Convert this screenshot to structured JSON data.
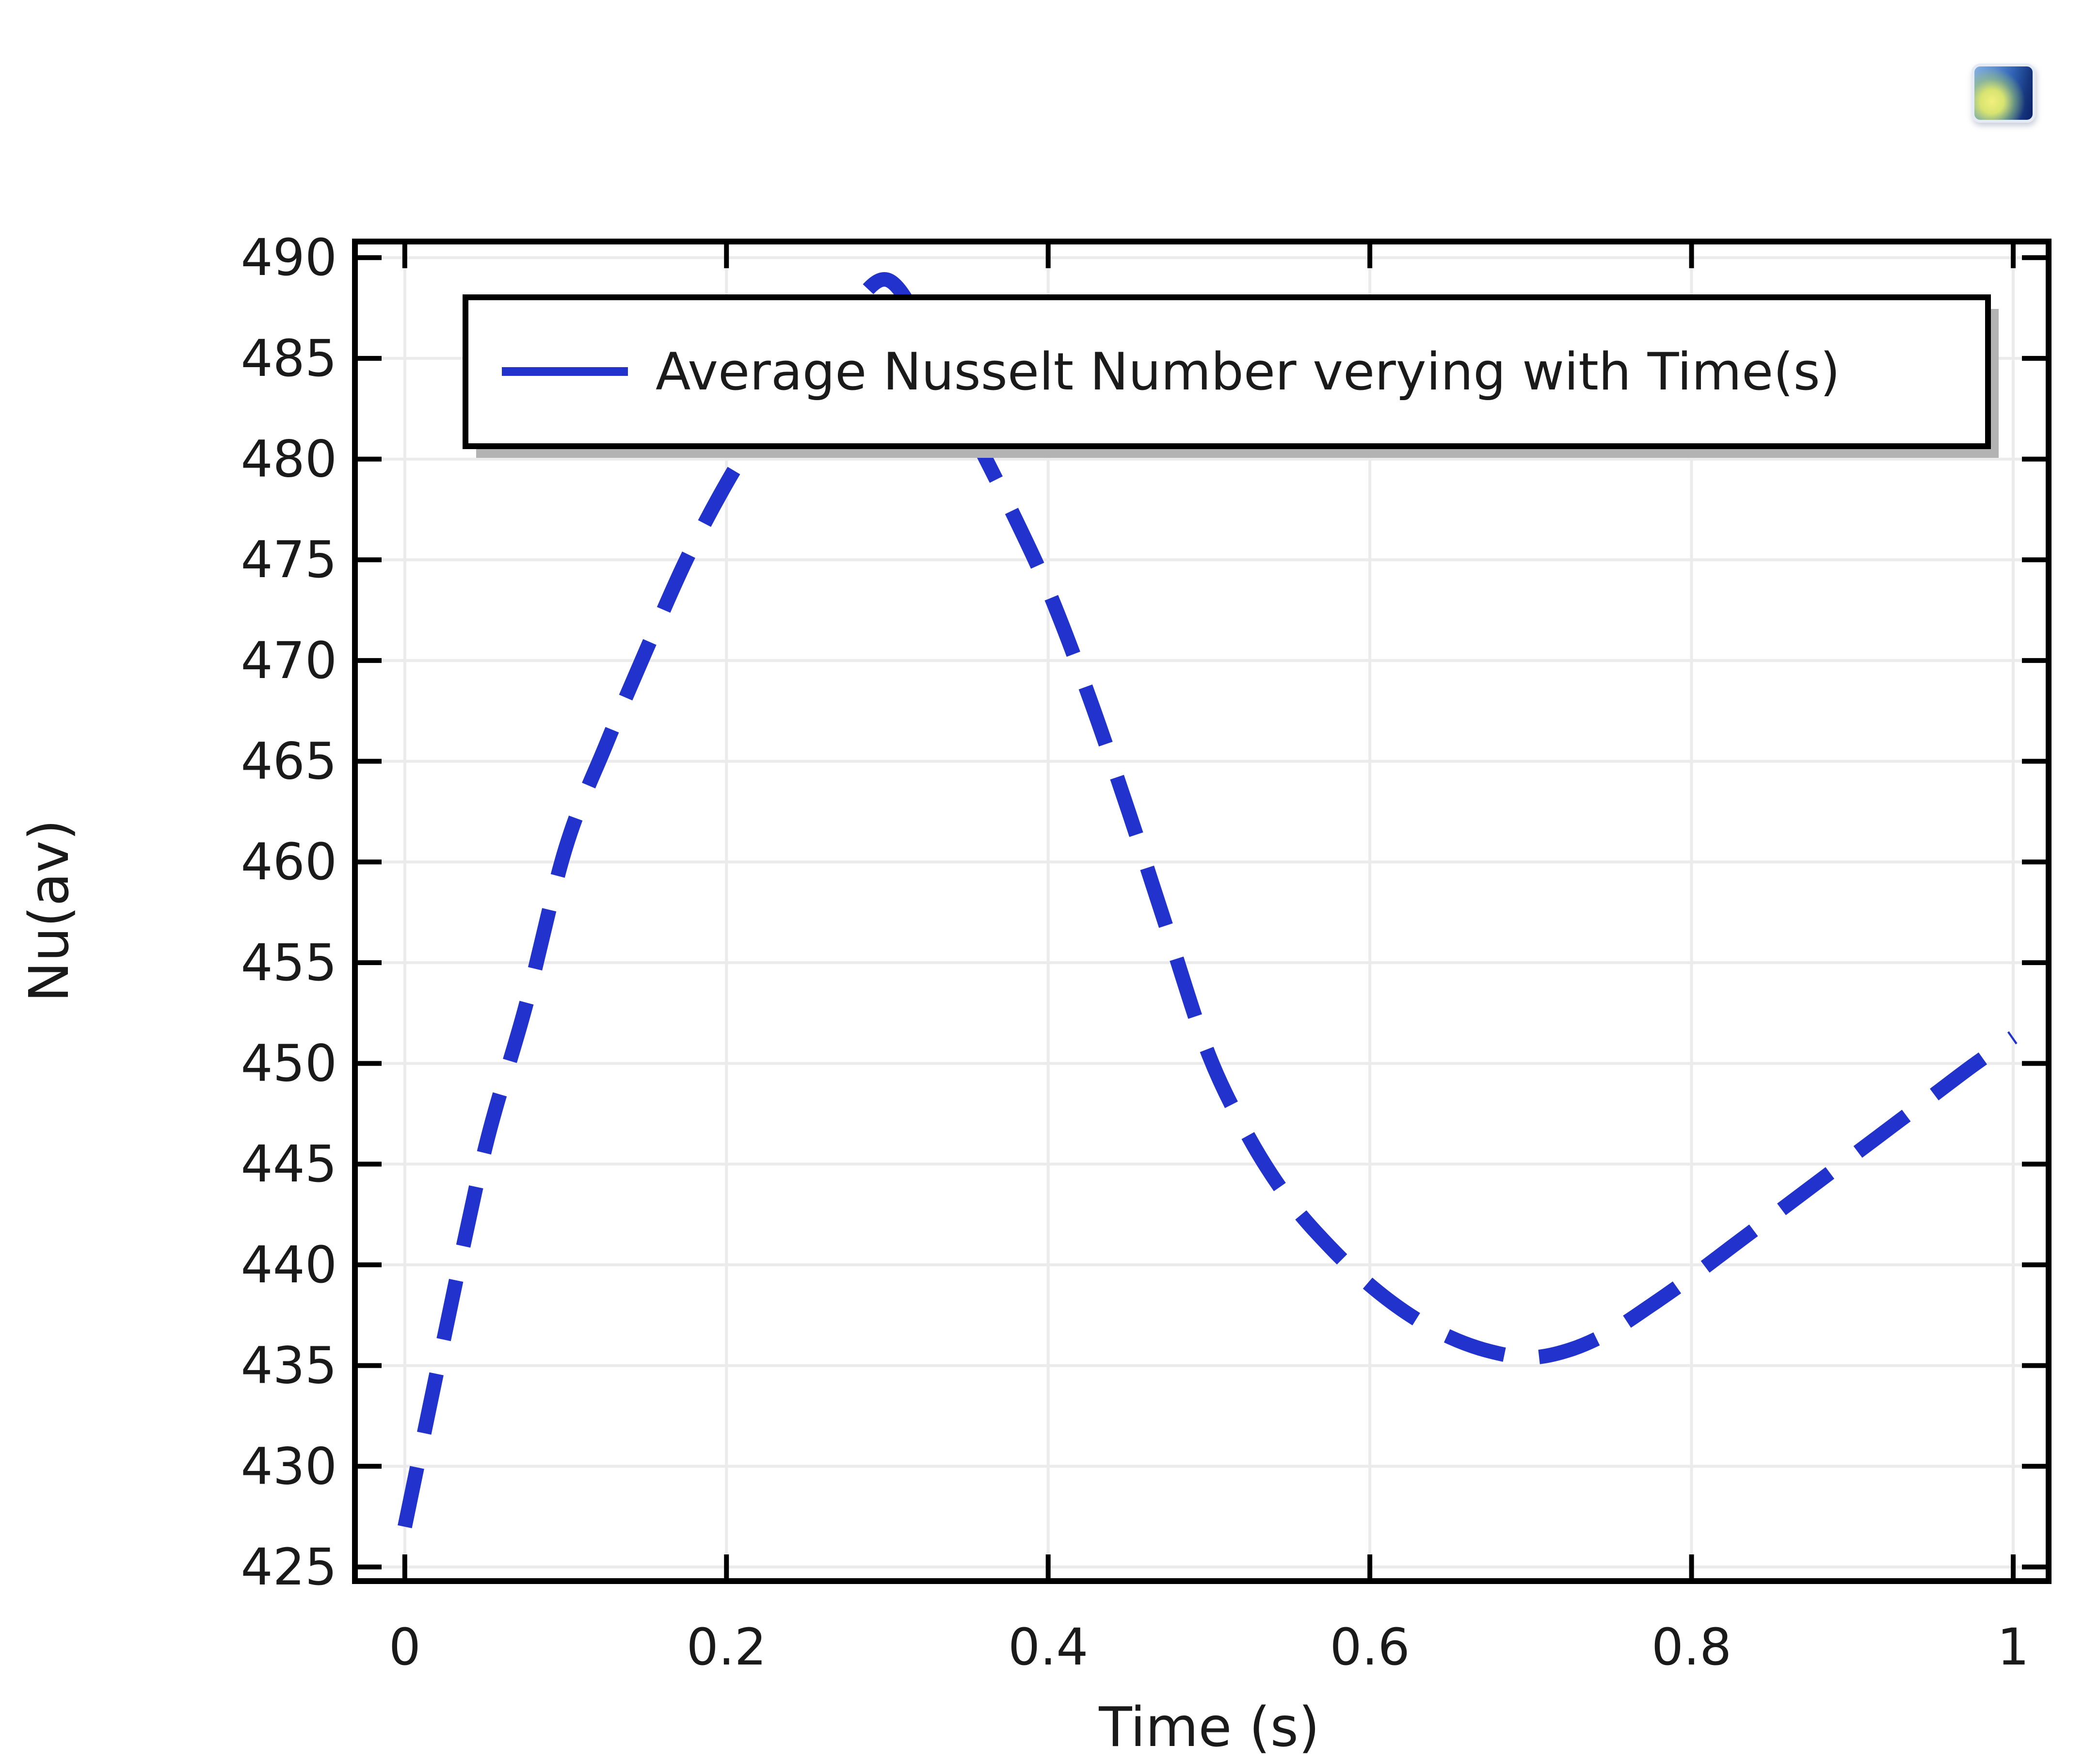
{
  "window": {
    "background": "#ffffff"
  },
  "icon": {
    "name": "comsol-plot-thumbnail-icon",
    "colors": {
      "blue_dark": "#0b2066",
      "blue_mid": "#2f62b4",
      "blue_light": "#85aede",
      "blob_yellow": "#f2ef7d",
      "rim": "#e4ebf5"
    }
  },
  "chart_data": {
    "type": "line",
    "title": "",
    "xlabel": "Time (s)",
    "ylabel": "Nu(av)",
    "legend": "Average Nusselt Number verying with Time(s)",
    "legend_position": "top-inside",
    "grid": true,
    "xlim": [
      -0.031,
      1.022
    ],
    "ylim": [
      424.3,
      490.8
    ],
    "x_ticks": [
      0,
      0.2,
      0.4,
      0.6,
      0.8,
      1
    ],
    "x_tick_labels": [
      "0",
      "0.2",
      "0.4",
      "0.6",
      "0.8",
      "1"
    ],
    "y_ticks": [
      425,
      430,
      435,
      440,
      445,
      450,
      455,
      460,
      465,
      470,
      475,
      480,
      485,
      490
    ],
    "y_tick_labels": [
      "425",
      "430",
      "435",
      "440",
      "445",
      "450",
      "455",
      "460",
      "465",
      "470",
      "475",
      "480",
      "485",
      "490"
    ],
    "axis_color": "#000000",
    "grid_color": "#ebebeb",
    "legend_shadow_color": "#b3b3b3",
    "series": [
      {
        "name": "Average Nusselt Number verying with Time(s)",
        "color": "#2133cc",
        "style": "dashed",
        "line_width": 30,
        "x": [
          0,
          0.025,
          0.05,
          0.075,
          0.1,
          0.125,
          0.15,
          0.175,
          0.2,
          0.225,
          0.25,
          0.275,
          0.3,
          0.325,
          0.35,
          0.375,
          0.4,
          0.425,
          0.45,
          0.475,
          0.5,
          0.525,
          0.55,
          0.575,
          0.6,
          0.625,
          0.65,
          0.675,
          0.7,
          0.725,
          0.75,
          0.775,
          0.8,
          0.825,
          0.85,
          0.875,
          0.9,
          0.925,
          0.95,
          0.975,
          1.0
        ],
        "y": [
          427.0,
          436.6,
          445.8,
          452.8,
          460.7,
          465.8,
          470.5,
          475.0,
          478.8,
          482.0,
          484.8,
          487.2,
          488.9,
          486.0,
          481.8,
          477.8,
          473.5,
          468.3,
          462.5,
          456.4,
          450.4,
          446.3,
          443.2,
          440.9,
          439.0,
          437.5,
          436.4,
          435.7,
          435.4,
          435.8,
          436.7,
          438.0,
          439.4,
          440.9,
          442.4,
          443.9,
          445.4,
          446.9,
          448.4,
          449.9,
          451.3
        ]
      }
    ]
  }
}
